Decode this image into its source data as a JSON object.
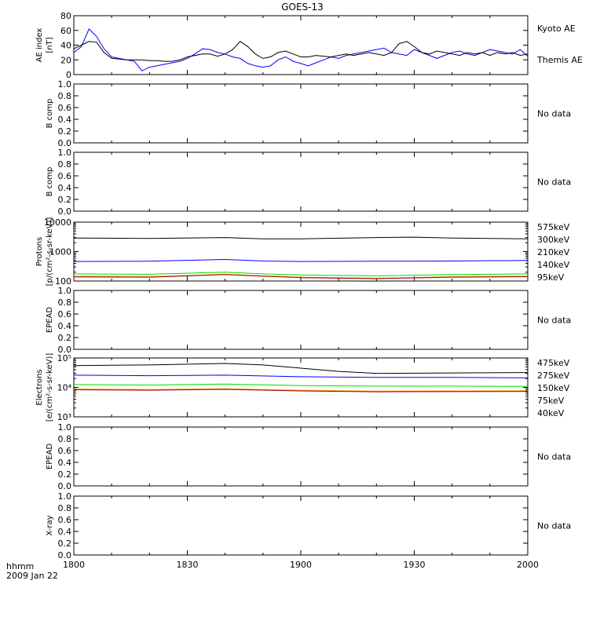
{
  "figure": {
    "title": "GOES-13",
    "footer_line1": "hhmm",
    "footer_line2": "2009 Jan 22"
  },
  "x_axis": {
    "start": 1800,
    "end": 2000,
    "ticks": [
      {
        "label": "1800",
        "minute": 0
      },
      {
        "label": "1830",
        "minute": 30
      },
      {
        "label": "1900",
        "minute": 60
      },
      {
        "label": "1930",
        "minute": 90
      },
      {
        "label": "2000",
        "minute": 120
      }
    ],
    "range_minutes": [
      0,
      120
    ]
  },
  "chart_data": [
    {
      "type": "line",
      "panel": "ae",
      "ylabel_line1": "AE index",
      "ylabel_line2": "[nT]",
      "ylim": [
        0,
        80
      ],
      "yticks": [
        "0",
        "20",
        "40",
        "60",
        "80"
      ],
      "series": [
        {
          "name": "Kyoto AE",
          "color": "#0000ff",
          "x": [
            0,
            2,
            4,
            6,
            8,
            10,
            12,
            14,
            16,
            18,
            20,
            22,
            24,
            26,
            28,
            30,
            32,
            34,
            36,
            38,
            40,
            42,
            44,
            46,
            48,
            50,
            52,
            54,
            56,
            58,
            60,
            62,
            64,
            66,
            68,
            70,
            72,
            74,
            76,
            78,
            80,
            82,
            84,
            86,
            88,
            90,
            92,
            94,
            96,
            98,
            100,
            102,
            104,
            106,
            108,
            110,
            112,
            114,
            116,
            118,
            120
          ],
          "y": [
            30,
            38,
            62,
            52,
            35,
            24,
            22,
            20,
            18,
            5,
            10,
            12,
            14,
            16,
            18,
            22,
            28,
            35,
            34,
            30,
            28,
            24,
            22,
            15,
            12,
            10,
            12,
            20,
            24,
            18,
            15,
            12,
            16,
            20,
            24,
            22,
            26,
            28,
            30,
            32,
            34,
            36,
            30,
            28,
            26,
            34,
            30,
            26,
            22,
            26,
            30,
            32,
            28,
            26,
            30,
            34,
            32,
            30,
            28,
            34,
            25
          ]
        },
        {
          "name": "Themis AE",
          "color": "#000000",
          "x": [
            0,
            2,
            4,
            6,
            8,
            10,
            12,
            14,
            16,
            18,
            20,
            22,
            24,
            26,
            28,
            30,
            32,
            34,
            36,
            38,
            40,
            42,
            44,
            46,
            48,
            50,
            52,
            54,
            56,
            58,
            60,
            62,
            64,
            66,
            68,
            70,
            72,
            74,
            76,
            78,
            80,
            82,
            84,
            86,
            88,
            90,
            92,
            94,
            96,
            98,
            100,
            102,
            104,
            106,
            108,
            110,
            112,
            114,
            116,
            118,
            120
          ],
          "y": [
            35,
            40,
            45,
            44,
            30,
            22,
            21,
            20,
            20,
            20,
            19,
            19,
            18,
            18,
            20,
            24,
            26,
            28,
            28,
            25,
            28,
            34,
            45,
            38,
            28,
            22,
            24,
            30,
            32,
            28,
            24,
            24,
            26,
            25,
            24,
            26,
            28,
            26,
            28,
            30,
            28,
            26,
            30,
            42,
            45,
            38,
            30,
            28,
            32,
            30,
            28,
            26,
            30,
            28,
            30,
            26,
            30,
            28,
            30,
            26,
            28
          ]
        }
      ]
    },
    {
      "type": "line",
      "panel": "empty",
      "ylabel_line1": "B comp",
      "ylim": [
        0,
        1.0
      ],
      "yticks": [
        "0.0",
        "0.2",
        "0.4",
        "0.6",
        "0.8",
        "1.0"
      ],
      "note": "No data",
      "series": []
    },
    {
      "type": "line",
      "panel": "empty",
      "ylabel_line1": "B comp",
      "ylim": [
        0,
        1.0
      ],
      "yticks": [
        "0.0",
        "0.2",
        "0.4",
        "0.6",
        "0.8",
        "1.0"
      ],
      "note": "No data",
      "series": []
    },
    {
      "type": "line",
      "panel": "protons",
      "log": true,
      "ylabel_line1": "Protons",
      "ylabel_line2": "[p/(cm²-s-sr-keV)]",
      "ylim": [
        100,
        10000
      ],
      "yticks": [
        {
          "label": "100",
          "value": 100
        },
        {
          "label": "1000",
          "value": 1000
        },
        {
          "label": "10000",
          "value": 10000
        }
      ],
      "legend": [
        {
          "label": "575keV",
          "color": "#a00000"
        },
        {
          "label": "300keV",
          "color": "#e8a000"
        },
        {
          "label": "210keV",
          "color": "#00dd00"
        },
        {
          "label": "140keV",
          "color": "#0000ff"
        },
        {
          "label": "95keV",
          "color": "#000000"
        }
      ],
      "series": [
        {
          "name": "95keV",
          "color": "#000000",
          "x": [
            0,
            20,
            40,
            50,
            60,
            80,
            90,
            100,
            120
          ],
          "y": [
            2900,
            2800,
            3000,
            2700,
            2700,
            3000,
            3100,
            2900,
            2700
          ]
        },
        {
          "name": "140keV",
          "color": "#0000ff",
          "x": [
            0,
            20,
            40,
            50,
            60,
            80,
            100,
            120
          ],
          "y": [
            460,
            470,
            540,
            480,
            460,
            470,
            480,
            500
          ]
        },
        {
          "name": "210keV",
          "color": "#00dd00",
          "x": [
            0,
            20,
            40,
            50,
            60,
            80,
            100,
            120
          ],
          "y": [
            175,
            170,
            200,
            175,
            160,
            150,
            165,
            175
          ]
        },
        {
          "name": "300keV",
          "color": "#e8a000",
          "x": [
            0,
            20,
            40,
            50,
            60,
            80,
            100,
            120
          ],
          "y": [
            145,
            140,
            170,
            150,
            135,
            125,
            140,
            145
          ]
        },
        {
          "name": "575keV",
          "color": "#a00000",
          "x": [
            0,
            20,
            40,
            50,
            60,
            80,
            100,
            120
          ],
          "y": [
            138,
            135,
            165,
            145,
            130,
            120,
            135,
            140
          ]
        }
      ]
    },
    {
      "type": "line",
      "panel": "empty",
      "ylabel_line1": "EPEAD",
      "ylim": [
        0,
        1.0
      ],
      "yticks": [
        "0.0",
        "0.2",
        "0.4",
        "0.6",
        "0.8",
        "1.0"
      ],
      "note": "No data",
      "series": []
    },
    {
      "type": "line",
      "panel": "electrons",
      "log": true,
      "ylabel_line1": "Electrons",
      "ylabel_line2": "[e/(cm²-s-sr-keV)]",
      "ylim": [
        1000,
        100000
      ],
      "yticks": [
        {
          "label": "10³",
          "value": 1000
        },
        {
          "label": "10⁴",
          "value": 10000
        },
        {
          "label": "10⁵",
          "value": 100000
        }
      ],
      "legend": [
        {
          "label": "475keV",
          "color": "#a00000"
        },
        {
          "label": "275keV",
          "color": "#e8a000"
        },
        {
          "label": "150keV",
          "color": "#00dd00"
        },
        {
          "label": "75keV",
          "color": "#0000ff"
        },
        {
          "label": "40keV",
          "color": "#000000"
        }
      ],
      "series": [
        {
          "name": "40keV",
          "color": "#000000",
          "x": [
            0,
            20,
            40,
            50,
            60,
            70,
            80,
            100,
            120
          ],
          "y": [
            55000,
            58000,
            65000,
            58000,
            45000,
            35000,
            30000,
            31000,
            32000
          ]
        },
        {
          "name": "75keV",
          "color": "#0000ff",
          "x": [
            0,
            20,
            40,
            60,
            80,
            100,
            120
          ],
          "y": [
            26000,
            25000,
            26000,
            23000,
            22000,
            22000,
            21000
          ]
        },
        {
          "name": "150keV",
          "color": "#00dd00",
          "x": [
            0,
            20,
            40,
            60,
            80,
            100,
            120
          ],
          "y": [
            12500,
            12000,
            13000,
            11500,
            11000,
            11000,
            10800
          ]
        },
        {
          "name": "275keV",
          "color": "#e8a000",
          "x": [
            0,
            20,
            40,
            60,
            80,
            100,
            120
          ],
          "y": [
            8800,
            8500,
            9000,
            8000,
            7500,
            7600,
            7700
          ]
        },
        {
          "name": "475keV",
          "color": "#a00000",
          "x": [
            0,
            20,
            40,
            60,
            80,
            100,
            120
          ],
          "y": [
            8300,
            8000,
            8600,
            7600,
            7100,
            7200,
            7300
          ]
        }
      ]
    },
    {
      "type": "line",
      "panel": "empty",
      "ylabel_line1": "EPEAD",
      "ylim": [
        0,
        1.0
      ],
      "yticks": [
        "0.0",
        "0.2",
        "0.4",
        "0.6",
        "0.8",
        "1.0"
      ],
      "note": "No data",
      "series": []
    },
    {
      "type": "line",
      "panel": "empty",
      "ylabel_line1": "X-ray",
      "ylim": [
        0,
        1.0
      ],
      "yticks": [
        "0.0",
        "0.2",
        "0.4",
        "0.6",
        "0.8",
        "1.0"
      ],
      "note": "No data",
      "series": []
    }
  ]
}
